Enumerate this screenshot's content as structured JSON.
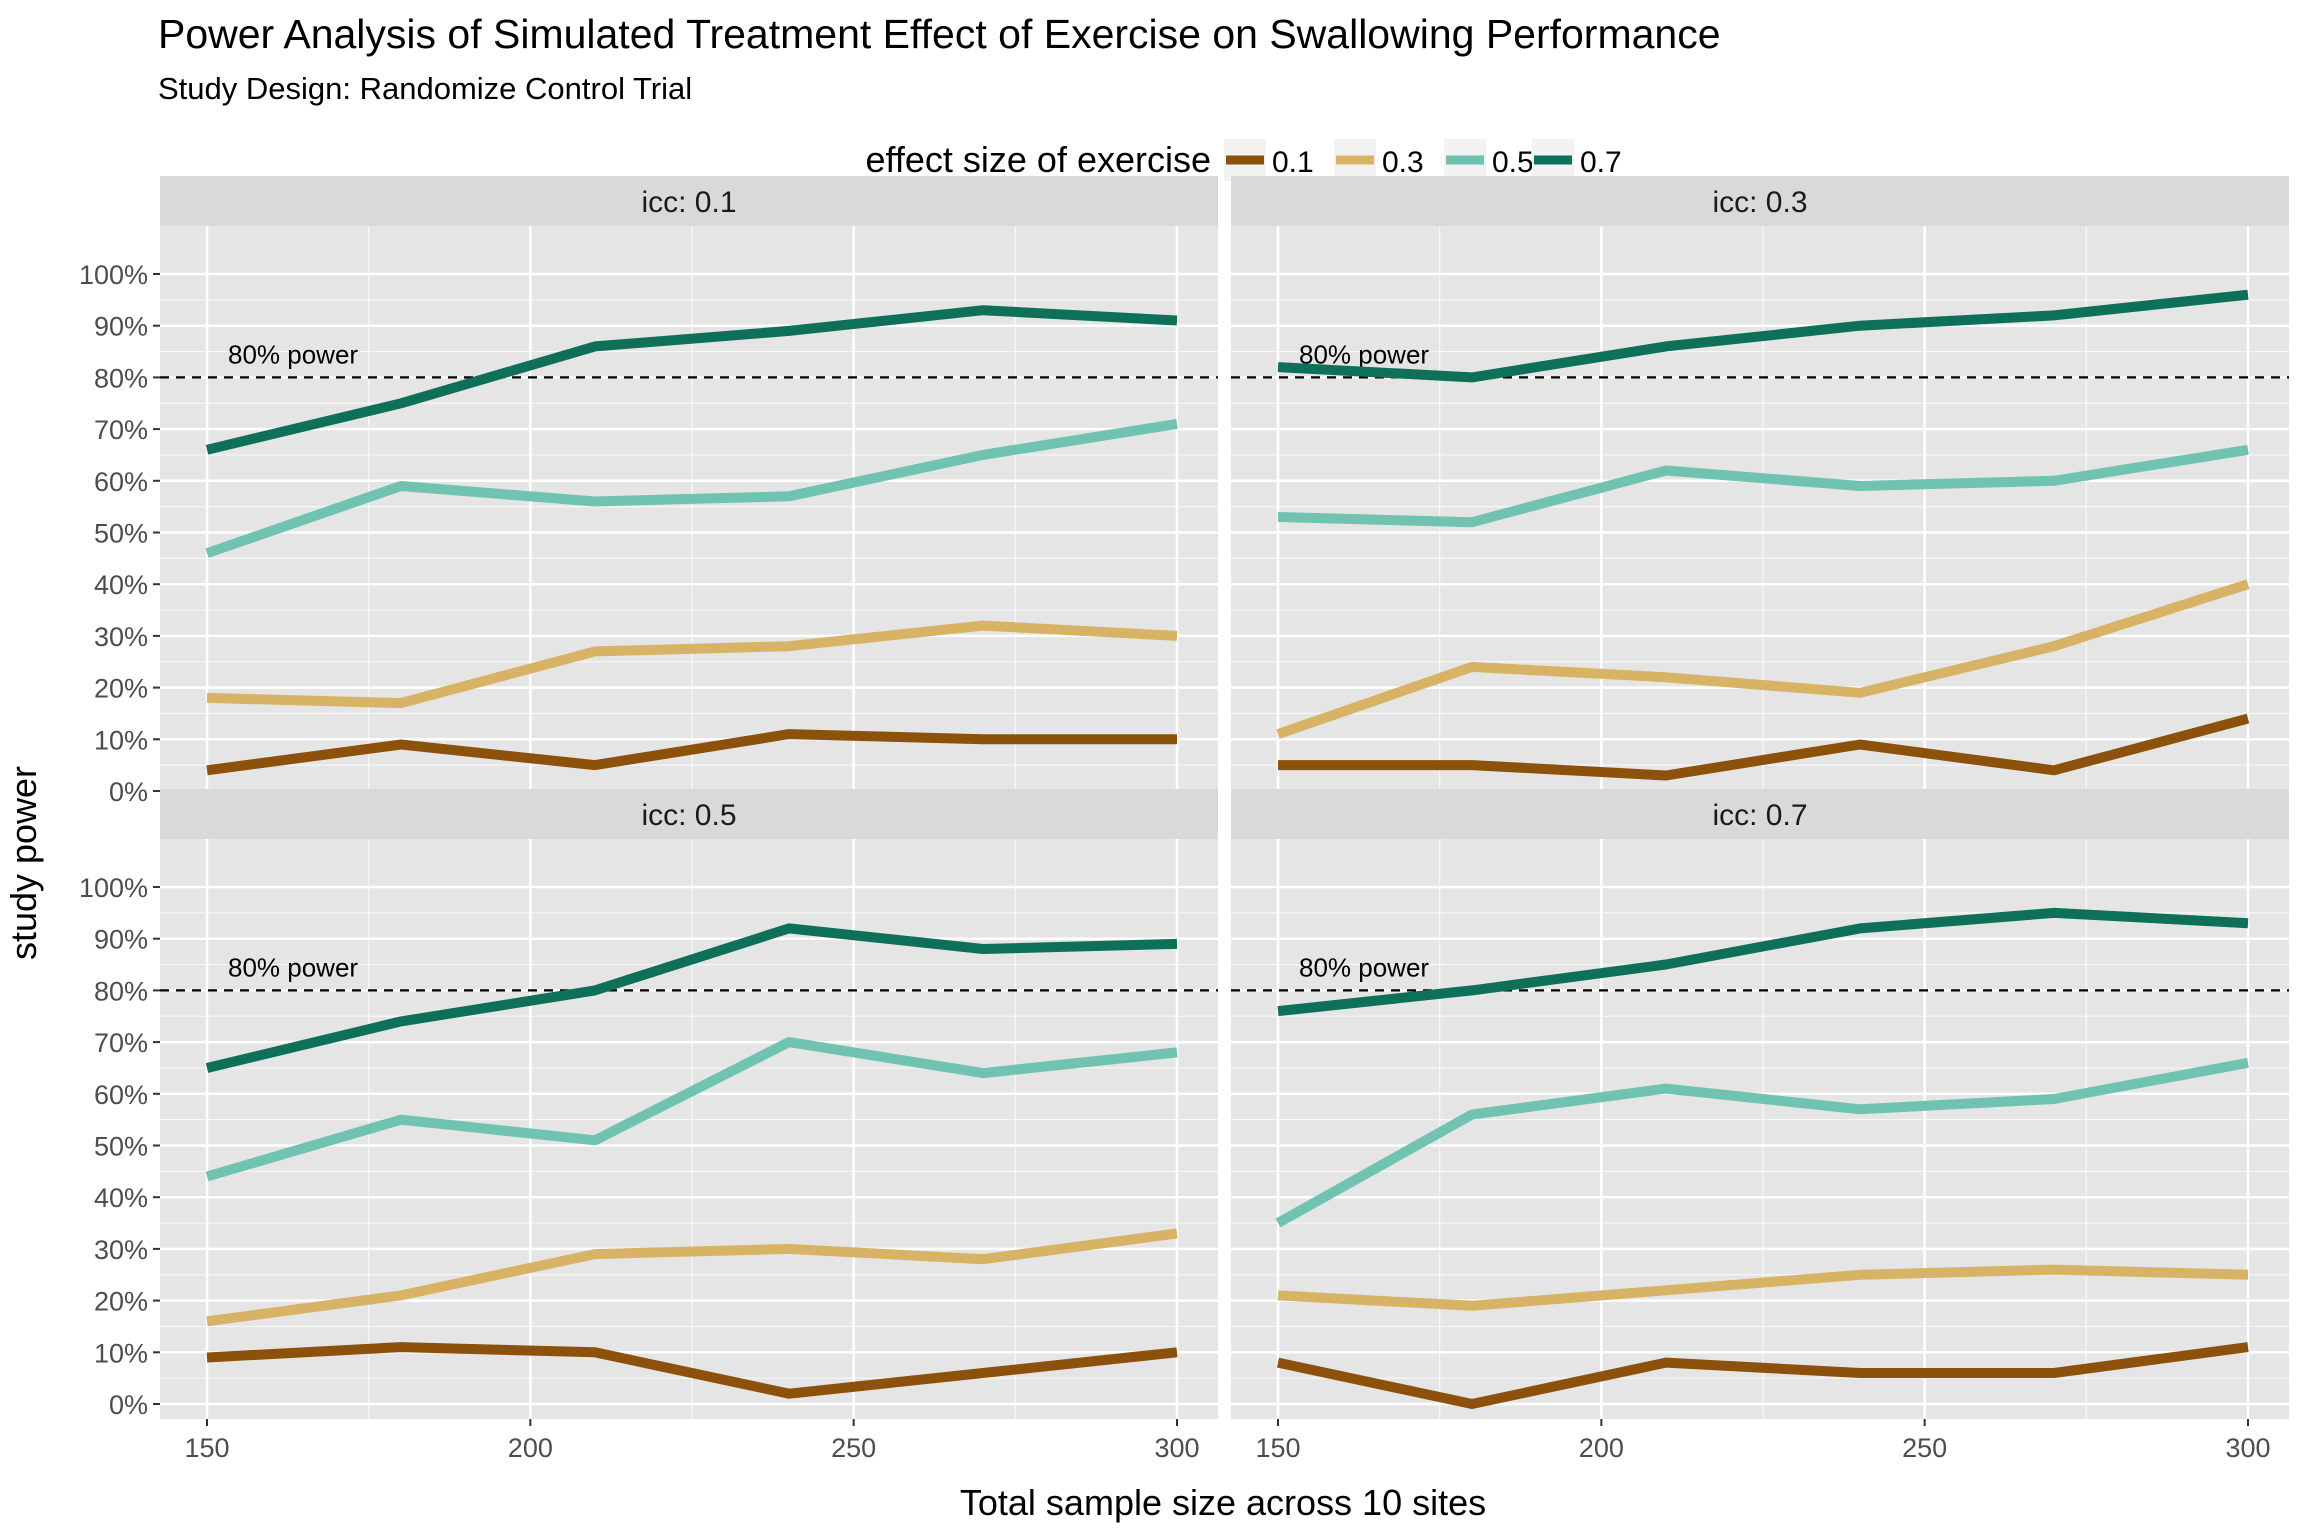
{
  "title": "Power Analysis of Simulated Treatment Effect of Exercise on Swallowing Performance",
  "subtitle": "Study Design: Randomize Control Trial",
  "legend": {
    "title": "effect size of exercise",
    "position": "top",
    "entries": [
      "0.1",
      "0.3",
      "0.5",
      "0.7"
    ]
  },
  "xlabel": "Total sample size across 10 sites",
  "ylabel": "study power",
  "reference_line": {
    "value": 80,
    "label": "80% power",
    "style": "dashed",
    "color": "#000000"
  },
  "colors": {
    "panel_background": "#e5e5e5",
    "strip_background": "#d9d9d9",
    "grid": "#ffffff",
    "series": {
      "0.1": "#8c510a",
      "0.3": "#d8b365",
      "0.5": "#6fc3b0",
      "0.7": "#0f7059"
    }
  },
  "chart_data": {
    "type": "line",
    "facet_by": "icc",
    "x": [
      150,
      180,
      210,
      240,
      270,
      300
    ],
    "x_ticks": [
      150,
      200,
      250,
      300
    ],
    "xlim": [
      150,
      300
    ],
    "y_ticks": [
      0,
      10,
      20,
      30,
      40,
      50,
      60,
      70,
      80,
      90,
      100
    ],
    "y_tick_labels": [
      "0%",
      "10%",
      "20%",
      "30%",
      "40%",
      "50%",
      "60%",
      "70%",
      "80%",
      "90%",
      "100%"
    ],
    "ylim": [
      0,
      100
    ],
    "grid": true,
    "panels": [
      {
        "label": "icc: 0.1",
        "series": [
          {
            "name": "0.1",
            "values": [
              4,
              9,
              5,
              11,
              10,
              10
            ]
          },
          {
            "name": "0.3",
            "values": [
              18,
              17,
              27,
              28,
              32,
              30
            ]
          },
          {
            "name": "0.5",
            "values": [
              46,
              59,
              56,
              57,
              65,
              71
            ]
          },
          {
            "name": "0.7",
            "values": [
              66,
              75,
              86,
              89,
              93,
              91
            ]
          }
        ]
      },
      {
        "label": "icc: 0.3",
        "series": [
          {
            "name": "0.1",
            "values": [
              5,
              5,
              3,
              9,
              4,
              14
            ]
          },
          {
            "name": "0.3",
            "values": [
              11,
              24,
              22,
              19,
              28,
              40
            ]
          },
          {
            "name": "0.5",
            "values": [
              53,
              52,
              62,
              59,
              60,
              66
            ]
          },
          {
            "name": "0.7",
            "values": [
              82,
              80,
              86,
              90,
              92,
              96
            ]
          }
        ]
      },
      {
        "label": "icc: 0.5",
        "series": [
          {
            "name": "0.1",
            "values": [
              9,
              11,
              10,
              2,
              6,
              10
            ]
          },
          {
            "name": "0.3",
            "values": [
              16,
              21,
              29,
              30,
              28,
              33
            ]
          },
          {
            "name": "0.5",
            "values": [
              44,
              55,
              51,
              70,
              64,
              68
            ]
          },
          {
            "name": "0.7",
            "values": [
              65,
              74,
              80,
              92,
              88,
              89
            ]
          }
        ]
      },
      {
        "label": "icc: 0.7",
        "series": [
          {
            "name": "0.1",
            "values": [
              8,
              0,
              8,
              6,
              6,
              11
            ]
          },
          {
            "name": "0.3",
            "values": [
              21,
              19,
              22,
              25,
              26,
              25
            ]
          },
          {
            "name": "0.5",
            "values": [
              35,
              56,
              61,
              57,
              59,
              66
            ]
          },
          {
            "name": "0.7",
            "values": [
              76,
              80,
              85,
              92,
              95,
              93
            ]
          }
        ]
      }
    ]
  }
}
